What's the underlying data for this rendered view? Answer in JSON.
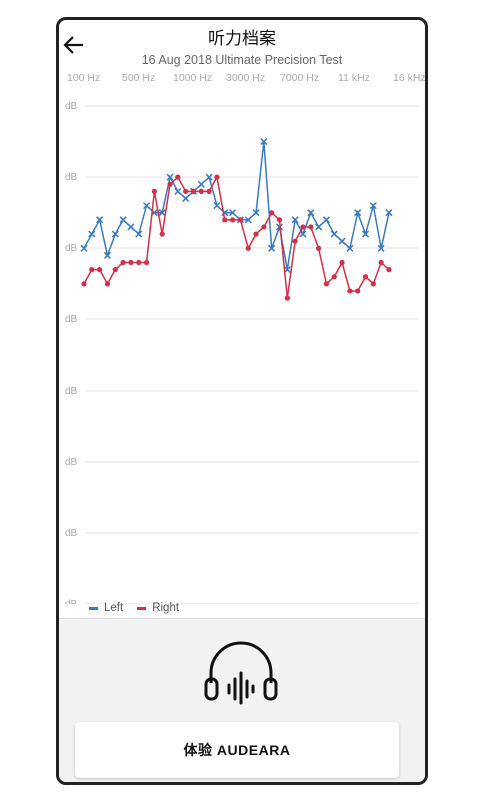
{
  "header": {
    "title": "听力档案",
    "subtitle": "16 Aug 2018 Ultimate Precision Test"
  },
  "frequencies": [
    "100 Hz",
    "500 Hz",
    "1000 Hz",
    "3000 Hz",
    "7000 Hz",
    "11 kHz",
    "16 kHz"
  ],
  "y_axis_label": "dB",
  "legend": {
    "left": "Left",
    "right": "Right"
  },
  "colors": {
    "left": "#3a7bbf",
    "right": "#d0304a",
    "grid": "#e3e3e3"
  },
  "chart_data": {
    "type": "line",
    "x": [
      1,
      2,
      3,
      4,
      5,
      6,
      7,
      8,
      9,
      10,
      11,
      12,
      13,
      14,
      15,
      16,
      17,
      18,
      19,
      20,
      21,
      22,
      23,
      24,
      25,
      26,
      27,
      28,
      29,
      30,
      31,
      32,
      33,
      34,
      35,
      36,
      37,
      38,
      39,
      40
    ],
    "series": [
      {
        "name": "Left",
        "marker": "x",
        "values": [
          50,
          52,
          54,
          49,
          52,
          54,
          53,
          52,
          56,
          55,
          55,
          60,
          58,
          57,
          58,
          59,
          60,
          56,
          55,
          55,
          54,
          54,
          55,
          65,
          50,
          53,
          47,
          54,
          52,
          55,
          53,
          54,
          52,
          51,
          50,
          55,
          52,
          56,
          50,
          55
        ]
      },
      {
        "name": "Right",
        "marker": "dot",
        "values": [
          45,
          47,
          47,
          45,
          47,
          48,
          48,
          48,
          48,
          58,
          52,
          59,
          60,
          58,
          58,
          58,
          58,
          60,
          54,
          54,
          54,
          50,
          52,
          53,
          55,
          54,
          43,
          51,
          53,
          53,
          50,
          45,
          46,
          48,
          44,
          44,
          46,
          45,
          48,
          47
        ]
      }
    ]
  },
  "icons": {
    "back": "arrow-left-icon",
    "headphones": "headphones-icon"
  },
  "cta": {
    "label": "体验 AUDEARA"
  }
}
